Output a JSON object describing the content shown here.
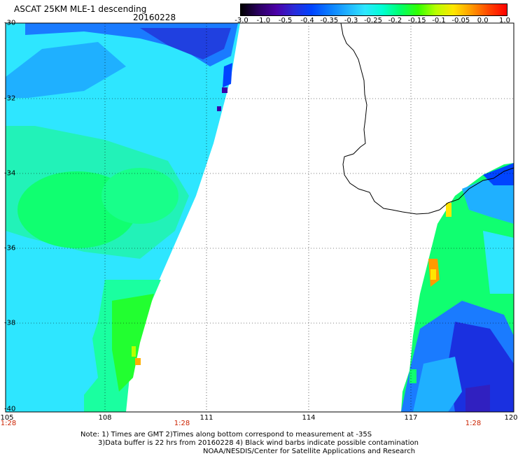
{
  "header": {
    "title": "ASCAT 25KM MLE-1 descending",
    "date": "20160228"
  },
  "colorbar": {
    "ticks": [
      "-3.0",
      "-1.0",
      "-0.5",
      "-0.4",
      "-0.35",
      "-0.3",
      "-0.25",
      "-0.2",
      "-0.15",
      "-0.1",
      "-0.05",
      "0.0",
      "1.0"
    ],
    "colors": [
      "#000000",
      "#2a0060",
      "#4b00a6",
      "#2a2ad8",
      "#0044ff",
      "#0a7cff",
      "#1fb0ff",
      "#2ee6ff",
      "#00ffd2",
      "#00ff6a",
      "#33ff00",
      "#b8ff00",
      "#ffe600",
      "#ff9a00",
      "#ff4400",
      "#ff0000"
    ]
  },
  "axes": {
    "y_labels": [
      "-30",
      "-32",
      "-34",
      "-36",
      "-38",
      "-40"
    ],
    "x_labels": [
      "105",
      "108",
      "111",
      "114",
      "117",
      "120"
    ]
  },
  "times": {
    "left": "1:28",
    "middle": "1:28",
    "right": "1:28"
  },
  "notes": {
    "line1": "Note: 1) Times are GMT 2)Times along bottom correspond to measurement at -35S",
    "line2": "3)Data buffer is 22 hrs from 20160228 4) Black wind barbs indicate possible contamination",
    "line3": "NOAA/NESDIS/Center for Satellite Applications and Research"
  }
}
